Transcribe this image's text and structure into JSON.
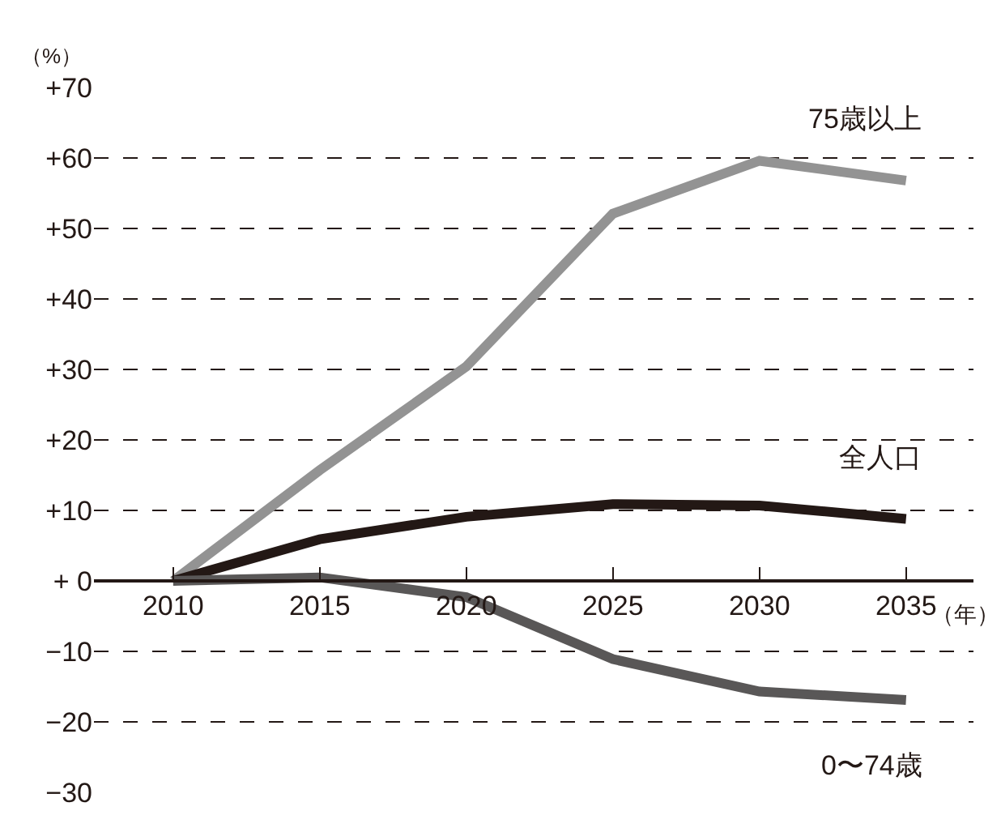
{
  "chart_data": {
    "type": "line",
    "ylabel": "（%）",
    "xlabel": "（年）",
    "x": [
      2010,
      2015,
      2020,
      2025,
      2030,
      2035
    ],
    "xlim": [
      2007.3,
      2037.3
    ],
    "xticks": [
      2010,
      2015,
      2020,
      2025,
      2030,
      2035
    ],
    "ylim": [
      -30,
      70
    ],
    "yticks": [
      {
        "value": 70,
        "label": "+70"
      },
      {
        "value": 60,
        "label": "+60"
      },
      {
        "value": 50,
        "label": "+50"
      },
      {
        "value": 40,
        "label": "+40"
      },
      {
        "value": 30,
        "label": "+30"
      },
      {
        "value": 20,
        "label": "+20"
      },
      {
        "value": 10,
        "label": "+10"
      },
      {
        "value": 0,
        "label": "+ 0"
      },
      {
        "value": -10,
        "label": "−10"
      },
      {
        "value": -20,
        "label": "−20"
      },
      {
        "value": -30,
        "label": "−30"
      }
    ],
    "grid": "y",
    "legend": false,
    "marker": "none",
    "line_style": "solid",
    "series": [
      {
        "name": "75歳以上",
        "color": "#939393",
        "values": [
          0,
          15.7,
          30.4,
          52.1,
          59.6,
          56.8
        ]
      },
      {
        "name": "全人口",
        "color": "#231815",
        "values": [
          0,
          5.9,
          9.1,
          10.9,
          10.7,
          8.8
        ]
      },
      {
        "name": "0〜74歳",
        "color": "#595757",
        "values": [
          0,
          0.5,
          -2.3,
          -11.1,
          -15.7,
          -16.9
        ]
      }
    ]
  }
}
